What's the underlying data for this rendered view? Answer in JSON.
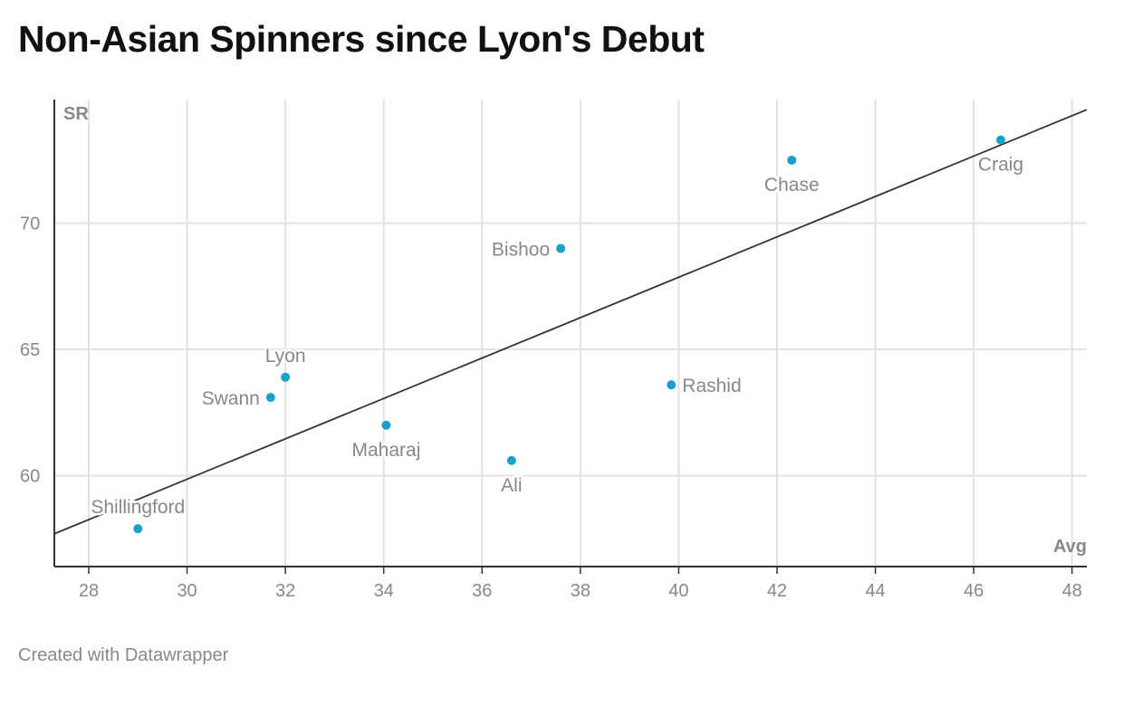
{
  "title": "Non-Asian Spinners since Lyon's Debut",
  "footer": "Created with Datawrapper",
  "colors": {
    "point": "#1aa0cc",
    "grid": "#e2e2e2",
    "axis": "#333333",
    "trend": "#333333",
    "text": "#888888"
  },
  "chart_data": {
    "type": "scatter",
    "title": "Non-Asian Spinners since Lyon's Debut",
    "xlabel": "Avg",
    "ylabel": "SR",
    "xlim": [
      27.3,
      48.3
    ],
    "ylim": [
      56.4,
      74.9
    ],
    "x_ticks": [
      28,
      30,
      32,
      34,
      36,
      38,
      40,
      42,
      44,
      46,
      48
    ],
    "y_ticks": [
      60,
      65,
      70
    ],
    "grid": true,
    "points": [
      {
        "name": "Shillingford",
        "x": 29.0,
        "y": 57.9,
        "label_pos": "above"
      },
      {
        "name": "Swann",
        "x": 31.7,
        "y": 63.1,
        "label_pos": "left"
      },
      {
        "name": "Lyon",
        "x": 32.0,
        "y": 63.9,
        "label_pos": "above"
      },
      {
        "name": "Maharaj",
        "x": 34.05,
        "y": 62.0,
        "label_pos": "below"
      },
      {
        "name": "Ali",
        "x": 36.6,
        "y": 60.6,
        "label_pos": "below"
      },
      {
        "name": "Bishoo",
        "x": 37.6,
        "y": 69.0,
        "label_pos": "left"
      },
      {
        "name": "Rashid",
        "x": 39.85,
        "y": 63.6,
        "label_pos": "right"
      },
      {
        "name": "Chase",
        "x": 42.3,
        "y": 72.5,
        "label_pos": "below"
      },
      {
        "name": "Craig",
        "x": 46.55,
        "y": 73.3,
        "label_pos": "below"
      }
    ],
    "trendline": {
      "x1": 27.3,
      "y1": 57.7,
      "x2": 48.3,
      "y2": 74.5
    }
  }
}
